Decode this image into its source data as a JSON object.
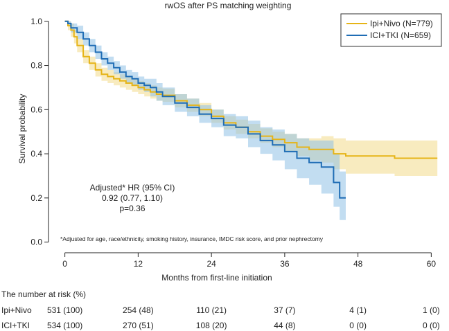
{
  "chart_data": {
    "type": "line",
    "title": "rwOS after PS matching weighting",
    "xlabel": "Months from first-line initiation",
    "ylabel": "Survival probability",
    "xlim": [
      -2,
      62
    ],
    "ylim": [
      -0.02,
      1.04
    ],
    "xticks": [
      0,
      12,
      24,
      36,
      48,
      60
    ],
    "yticks": [
      0.0,
      0.2,
      0.4,
      0.6,
      0.8,
      1.0
    ],
    "ytick_labels": [
      "0.0",
      "0.2",
      "0.4",
      "0.6",
      "0.8",
      "1.0"
    ],
    "legend_position": "top-right",
    "series": [
      {
        "name": "Ipi+Nivo (N=779)",
        "color": "#E6B417",
        "band_color": "#F3DA8A",
        "x": [
          0,
          0.5,
          1,
          1.5,
          2,
          3,
          4,
          5,
          6,
          7,
          8,
          9,
          10,
          11,
          12,
          13,
          14,
          15,
          16,
          18,
          20,
          22,
          24,
          26,
          28,
          30,
          32,
          34,
          36,
          38,
          40,
          42,
          44,
          46,
          48,
          50,
          52,
          54,
          56,
          58,
          60,
          61
        ],
        "y": [
          1.0,
          0.98,
          0.96,
          0.93,
          0.89,
          0.84,
          0.81,
          0.78,
          0.76,
          0.75,
          0.74,
          0.73,
          0.72,
          0.71,
          0.7,
          0.69,
          0.68,
          0.67,
          0.665,
          0.64,
          0.62,
          0.6,
          0.57,
          0.54,
          0.52,
          0.5,
          0.48,
          0.465,
          0.45,
          0.43,
          0.42,
          0.42,
          0.4,
          0.39,
          0.39,
          0.39,
          0.39,
          0.38,
          0.38,
          0.38,
          0.38,
          0.38
        ],
        "lower": [
          1.0,
          0.96,
          0.93,
          0.9,
          0.86,
          0.81,
          0.78,
          0.75,
          0.73,
          0.72,
          0.71,
          0.7,
          0.69,
          0.68,
          0.67,
          0.66,
          0.65,
          0.64,
          0.635,
          0.61,
          0.59,
          0.57,
          0.54,
          0.51,
          0.49,
          0.47,
          0.45,
          0.43,
          0.41,
          0.39,
          0.37,
          0.36,
          0.33,
          0.31,
          0.31,
          0.31,
          0.31,
          0.3,
          0.3,
          0.3,
          0.3,
          0.3
        ],
        "upper": [
          1.0,
          1.0,
          0.99,
          0.96,
          0.92,
          0.87,
          0.84,
          0.81,
          0.79,
          0.78,
          0.77,
          0.76,
          0.75,
          0.74,
          0.73,
          0.72,
          0.71,
          0.7,
          0.695,
          0.67,
          0.65,
          0.63,
          0.6,
          0.57,
          0.555,
          0.535,
          0.515,
          0.5,
          0.49,
          0.47,
          0.47,
          0.48,
          0.47,
          0.46,
          0.46,
          0.46,
          0.46,
          0.46,
          0.46,
          0.46,
          0.46,
          0.46
        ]
      },
      {
        "name": "ICI+TKI (N=659)",
        "color": "#1F6DB5",
        "band_color": "#8FC1E6",
        "x": [
          0,
          0.5,
          1,
          2,
          3,
          4,
          5,
          6,
          7,
          8,
          9,
          10,
          11,
          12,
          13,
          14,
          15,
          16,
          18,
          20,
          22,
          24,
          26,
          28,
          30,
          32,
          34,
          36,
          38,
          40,
          42,
          44,
          45,
          46
        ],
        "y": [
          1.0,
          0.99,
          0.97,
          0.95,
          0.92,
          0.89,
          0.86,
          0.83,
          0.81,
          0.79,
          0.77,
          0.75,
          0.74,
          0.72,
          0.71,
          0.7,
          0.68,
          0.66,
          0.63,
          0.61,
          0.58,
          0.56,
          0.53,
          0.52,
          0.49,
          0.46,
          0.44,
          0.41,
          0.38,
          0.36,
          0.34,
          0.27,
          0.2,
          0.2
        ],
        "lower": [
          1.0,
          0.98,
          0.95,
          0.92,
          0.89,
          0.86,
          0.83,
          0.8,
          0.78,
          0.76,
          0.74,
          0.72,
          0.71,
          0.69,
          0.68,
          0.66,
          0.64,
          0.62,
          0.59,
          0.57,
          0.54,
          0.52,
          0.48,
          0.47,
          0.43,
          0.4,
          0.37,
          0.33,
          0.29,
          0.26,
          0.22,
          0.16,
          0.1,
          0.1
        ],
        "upper": [
          1.0,
          1.0,
          0.99,
          0.98,
          0.95,
          0.92,
          0.89,
          0.86,
          0.84,
          0.82,
          0.8,
          0.78,
          0.77,
          0.75,
          0.74,
          0.74,
          0.72,
          0.7,
          0.67,
          0.65,
          0.62,
          0.6,
          0.58,
          0.57,
          0.55,
          0.52,
          0.51,
          0.49,
          0.47,
          0.46,
          0.46,
          0.4,
          0.32,
          0.32
        ]
      }
    ],
    "annotations": [
      "Adjusted* HR (95% CI)",
      "0.92 (0.77, 1.10)",
      "p=0.36"
    ],
    "footnote": "*Adjusted for age, race/ethnicity, smoking history, insurance, IMDC risk score, and prior nephrectomy"
  },
  "risk_table": {
    "title": "The number at risk (%)",
    "times": [
      0,
      12,
      24,
      36,
      48,
      60
    ],
    "rows": [
      {
        "label": "Ipi+Nivo",
        "values": [
          "531 (100)",
          "254 (48)",
          "110 (21)",
          "37 (7)",
          "4 (1)",
          "1 (0)"
        ]
      },
      {
        "label": "ICI+TKI",
        "values": [
          "534 (100)",
          "270 (51)",
          "108 (20)",
          "44 (8)",
          "0 (0)",
          "0 (0)"
        ]
      }
    ]
  }
}
